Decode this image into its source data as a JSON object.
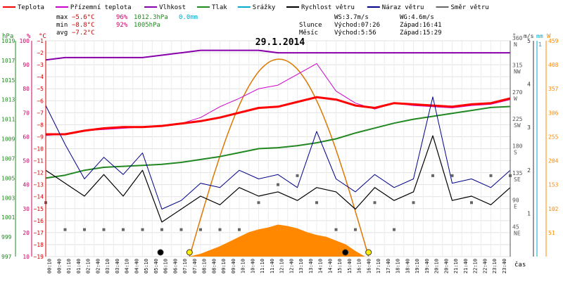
{
  "chart_data": {
    "type": "line",
    "title": "29.1.2014",
    "legend": [
      {
        "label": "Teplota",
        "color": "#ff0000"
      },
      {
        "label": "Přízemní teplota",
        "color": "#cc00cc"
      },
      {
        "label": "Vlhkost",
        "color": "#8800aa"
      },
      {
        "label": "Tlak",
        "color": "#228822"
      },
      {
        "label": "Srážky",
        "color": "#00aacc"
      },
      {
        "label": "Rychlost větru",
        "color": "#000000"
      },
      {
        "label": "Náraz větru",
        "color": "#000088"
      },
      {
        "label": "Směr větru",
        "color": "#666666"
      }
    ],
    "stats": {
      "max": {
        "label": "max",
        "temp": "−5.6°C",
        "hum": "96%",
        "press": "1012.3hPa",
        "rain": "0.0mm"
      },
      "min": {
        "label": "min",
        "temp": "−8.8°C",
        "hum": "92%",
        "press": "1005hPa"
      },
      "avg": {
        "label": "avg",
        "temp": "−7.2°C"
      }
    },
    "wind_info": {
      "ws": "WS:3.7m/s",
      "wg": "WG:4.6m/s"
    },
    "sun": {
      "label": "Slunce",
      "rise": "Východ:07:26",
      "set": "Západ:16:41"
    },
    "moon": {
      "label": "Měsíc",
      "rise": "Východ:5:56",
      "set": "Západ:15:29"
    },
    "axes": {
      "hpa": {
        "label": "hPa",
        "ticks": [
          "997",
          "999",
          "1001",
          "1003",
          "1005",
          "1007",
          "1009",
          "1011",
          "1013",
          "1015",
          "1017",
          "1019"
        ],
        "color": "#228822"
      },
      "pct": {
        "label": "%",
        "ticks": [
          "10",
          "20",
          "30",
          "40",
          "50",
          "60",
          "70",
          "80",
          "90",
          "100"
        ],
        "color": "#cc0066"
      },
      "celsius": {
        "label": "°C",
        "ticks": [
          "−19",
          "−18",
          "−17",
          "−16",
          "−15",
          "−14",
          "−13",
          "−12",
          "−11",
          "−10",
          "−9",
          "−8",
          "−7",
          "−6",
          "−5",
          "−4",
          "−3",
          "−2",
          "−1"
        ],
        "color": "#cc0000"
      },
      "deg": {
        "label": "°",
        "ticks": [
          "45",
          "90",
          "135",
          "180",
          "225",
          "270",
          "315",
          "360"
        ],
        "dirs": [
          "NE",
          "E",
          "SE",
          "S",
          "SW",
          "W",
          "NW",
          "N"
        ],
        "color": "#555555"
      },
      "ms": {
        "label": "m/s",
        "ticks": [
          "1",
          "2",
          "3",
          "4",
          "5"
        ],
        "color": "#333333"
      },
      "mm": {
        "label": "mm",
        "ticks": [
          "1"
        ],
        "color": "#00aacc"
      },
      "wm2": {
        "label": "W",
        "ticks": [
          "51",
          "102",
          "153",
          "204",
          "255",
          "306",
          "357",
          "408",
          "459"
        ],
        "color": "#ff8800"
      },
      "time_label": "čas",
      "time_ticks": [
        "00:10",
        "00:40",
        "01:10",
        "01:40",
        "02:10",
        "02:40",
        "03:10",
        "03:40",
        "04:10",
        "04:40",
        "05:10",
        "05:40",
        "06:10",
        "06:40",
        "07:10",
        "07:40",
        "08:10",
        "08:40",
        "09:10",
        "09:40",
        "10:10",
        "10:40",
        "11:10",
        "11:40",
        "12:10",
        "12:40",
        "13:10",
        "13:40",
        "14:10",
        "14:40",
        "15:10",
        "15:40",
        "16:10",
        "16:40",
        "17:10",
        "17:40",
        "18:10",
        "18:40",
        "19:10",
        "19:40",
        "20:10",
        "20:40",
        "21:10",
        "21:40",
        "22:10",
        "22:40",
        "23:10",
        "23:40"
      ]
    },
    "x_hours": [
      0,
      1,
      2,
      3,
      4,
      5,
      6,
      7,
      8,
      9,
      10,
      11,
      12,
      13,
      14,
      15,
      16,
      17,
      18,
      19,
      20,
      21,
      22,
      23,
      24
    ],
    "series": [
      {
        "name": "Teplota",
        "unit": "°C",
        "values": [
          -8.8,
          -8.8,
          -8.5,
          -8.3,
          -8.2,
          -8.2,
          -8.1,
          -7.9,
          -7.7,
          -7.4,
          -7.0,
          -6.6,
          -6.5,
          -6.1,
          -5.7,
          -5.9,
          -6.4,
          -6.6,
          -6.2,
          -6.3,
          -6.4,
          -6.5,
          -6.3,
          -6.2,
          -5.8
        ]
      },
      {
        "name": "Přízemní teplota",
        "unit": "°C",
        "values": [
          -8.9,
          -8.8,
          -8.5,
          -8.4,
          -8.3,
          -8.2,
          -8.1,
          -7.9,
          -7.4,
          -6.5,
          -5.8,
          -5.0,
          -4.7,
          -3.8,
          -2.9,
          -5.2,
          -6.2,
          -6.7,
          -6.2,
          -6.4,
          -6.5,
          -6.6,
          -6.4,
          -6.3,
          -5.9
        ]
      },
      {
        "name": "Vlhkost",
        "unit": "%",
        "values": [
          92,
          93,
          93,
          93,
          93,
          93,
          94,
          95,
          96,
          96,
          96,
          96,
          95,
          95,
          95,
          95,
          95,
          95,
          95,
          95,
          95,
          95,
          95,
          95,
          95
        ]
      },
      {
        "name": "Tlak",
        "unit": "hPa",
        "values": [
          1005.0,
          1005.3,
          1005.8,
          1006.1,
          1006.2,
          1006.3,
          1006.4,
          1006.6,
          1006.9,
          1007.2,
          1007.6,
          1008.0,
          1008.1,
          1008.3,
          1008.6,
          1009.0,
          1009.6,
          1010.1,
          1010.6,
          1011.0,
          1011.3,
          1011.6,
          1011.9,
          1012.2,
          1012.3
        ]
      },
      {
        "name": "Rychlost větru",
        "unit": "m/s",
        "values": [
          2.0,
          1.7,
          1.4,
          1.9,
          1.4,
          2.0,
          0.8,
          1.1,
          1.4,
          1.2,
          1.6,
          1.4,
          1.5,
          1.3,
          1.6,
          1.5,
          1.1,
          1.6,
          1.3,
          1.5,
          2.8,
          1.3,
          1.4,
          1.2,
          1.6
        ]
      },
      {
        "name": "Náraz větru",
        "unit": "m/s",
        "values": [
          3.5,
          2.6,
          1.8,
          2.3,
          1.9,
          2.4,
          1.1,
          1.3,
          1.7,
          1.6,
          2.0,
          1.8,
          1.9,
          1.6,
          2.9,
          1.8,
          1.5,
          1.9,
          1.6,
          1.8,
          3.7,
          1.7,
          1.8,
          1.6,
          2.0
        ]
      },
      {
        "name": "Směr větru",
        "unit": "°",
        "values": [
          90,
          45,
          45,
          45,
          45,
          45,
          45,
          45,
          45,
          45,
          45,
          90,
          120,
          135,
          90,
          45,
          45,
          90,
          45,
          90,
          135,
          135,
          90,
          135,
          135
        ]
      },
      {
        "name": "Srážky",
        "unit": "mm",
        "values": [
          0,
          0,
          0,
          0,
          0,
          0,
          0,
          0,
          0,
          0,
          0,
          0,
          0,
          0,
          0,
          0,
          0,
          0,
          0,
          0,
          0,
          0,
          0,
          0,
          0
        ]
      }
    ],
    "solar_theoretical": {
      "unit": "W",
      "start_hour": 7.43,
      "end_hour": 16.68,
      "peak": 420
    },
    "solar_measured": {
      "unit": "W",
      "x": [
        7.4,
        8,
        8.5,
        9,
        9.5,
        10,
        10.5,
        11,
        11.5,
        12,
        12.5,
        13,
        13.5,
        14,
        14.5,
        15,
        15.5,
        16,
        16.5
      ],
      "values": [
        0,
        6,
        14,
        22,
        32,
        42,
        52,
        58,
        62,
        68,
        65,
        60,
        52,
        46,
        42,
        34,
        26,
        12,
        0
      ]
    },
    "ylim_celsius": [
      -19,
      -1
    ],
    "ylim_hpa": [
      997,
      1019
    ],
    "ylim_pct": [
      10,
      100
    ],
    "ylim_ms": [
      0,
      5
    ],
    "ylim_wm2": [
      0,
      459
    ],
    "ylim_deg": [
      0,
      360
    ]
  }
}
